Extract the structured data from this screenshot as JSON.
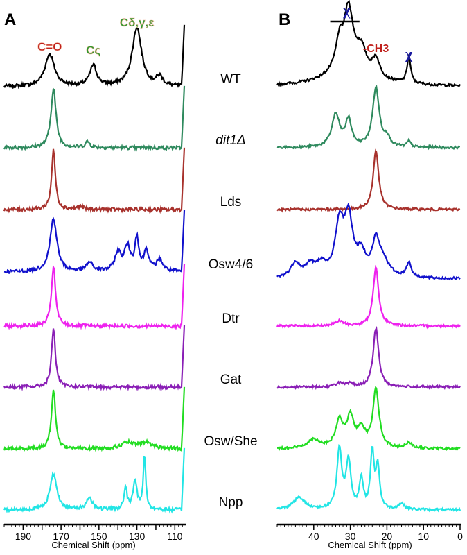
{
  "chart_data": [
    {
      "panel": "A",
      "type": "line",
      "xlabel": "Chemical Shift (ppm)",
      "xlim": [
        200,
        105
      ],
      "xticks": [
        190,
        180,
        170,
        160,
        150,
        140,
        130,
        120,
        110
      ],
      "tick_labels": [
        "190",
        "170",
        "150",
        "130",
        "110"
      ],
      "annotations": [
        {
          "text": "C=O",
          "x": 176,
          "color": "#c0201c"
        },
        {
          "text": "Cς",
          "x": 153,
          "color": "#2e9a2e"
        },
        {
          "text": "Cδ,γ,ε",
          "x": 130,
          "color": "#2e9a2e"
        }
      ]
    },
    {
      "panel": "B",
      "type": "line",
      "xlabel": "Chemical Shift (ppm)",
      "xlim": [
        50,
        0
      ],
      "xticks": [
        40,
        30,
        20,
        10,
        0
      ],
      "tick_labels": [
        "40",
        "30",
        "20",
        "10",
        "0"
      ],
      "annotations": [
        {
          "text": "χ",
          "x": 31,
          "color": "#1a1aa0"
        },
        {
          "text": "-CH3",
          "x": 23,
          "color": "#c0201c"
        },
        {
          "text": "χ",
          "x": 14,
          "color": "#1a1aa0"
        }
      ]
    }
  ],
  "series": [
    {
      "name": "WT",
      "italic": false,
      "color": "#000000",
      "peaksA": [
        [
          176,
          0.55,
          3
        ],
        [
          153,
          0.35,
          2.2
        ],
        [
          130,
          1.0,
          3
        ],
        [
          118,
          0.15,
          2
        ]
      ],
      "peaksB": [
        [
          33,
          0.45,
          1.2
        ],
        [
          30.5,
          1.0,
          1.5
        ],
        [
          27,
          0.35,
          1.5
        ],
        [
          23,
          0.3,
          1.2
        ],
        [
          14,
          0.45,
          0.6
        ],
        [
          30,
          0.3,
          7
        ]
      ]
    },
    {
      "name": "dit1Δ",
      "italic": true,
      "color": "#2f8a5e",
      "peaksA": [
        [
          174,
          1.0,
          1.6
        ],
        [
          156,
          0.1,
          1.5
        ]
      ],
      "peaksB": [
        [
          34,
          0.55,
          1.3
        ],
        [
          30.5,
          0.45,
          1.0
        ],
        [
          23,
          1.0,
          1.1
        ],
        [
          20,
          0.15,
          1
        ],
        [
          14,
          0.1,
          0.6
        ]
      ]
    },
    {
      "name": "Lds",
      "italic": false,
      "color": "#a8322d",
      "peaksA": [
        [
          174,
          1.0,
          1.2
        ],
        [
          160,
          0.05,
          2
        ]
      ],
      "peaksB": [
        [
          23,
          1.0,
          0.9
        ]
      ]
    },
    {
      "name": "Osw4/6",
      "italic": false,
      "color": "#1111cc",
      "peaksA": [
        [
          174,
          0.9,
          2.2
        ],
        [
          155,
          0.15,
          2
        ],
        [
          140,
          0.3,
          2
        ],
        [
          135,
          0.4,
          2
        ],
        [
          130,
          0.55,
          1.2
        ],
        [
          125,
          0.35,
          1.5
        ],
        [
          118,
          0.2,
          2
        ]
      ],
      "peaksB": [
        [
          45,
          0.25,
          1.5
        ],
        [
          41,
          0.2,
          1.5
        ],
        [
          38,
          0.2,
          1.5
        ],
        [
          33,
          0.85,
          1.4
        ],
        [
          30.5,
          0.95,
          1.4
        ],
        [
          27,
          0.35,
          1.5
        ],
        [
          23,
          0.55,
          1.2
        ],
        [
          21,
          0.25,
          2
        ],
        [
          14,
          0.25,
          0.8
        ]
      ]
    },
    {
      "name": "Dtr",
      "italic": false,
      "color": "#ee22ee",
      "peaksA": [
        [
          174,
          1.0,
          1.3
        ]
      ],
      "peaksB": [
        [
          33,
          0.08,
          1.5
        ],
        [
          23,
          1.0,
          0.9
        ]
      ]
    },
    {
      "name": "Gat",
      "italic": false,
      "color": "#8a1fb6",
      "peaksA": [
        [
          174,
          1.0,
          1.2
        ]
      ],
      "peaksB": [
        [
          33,
          0.07,
          1.2
        ],
        [
          30,
          0.05,
          1
        ],
        [
          23,
          1.0,
          0.9
        ]
      ]
    },
    {
      "name": "Osw/She",
      "italic": false,
      "color": "#22dd22",
      "peaksA": [
        [
          174,
          1.0,
          1.3
        ],
        [
          135,
          0.1,
          4
        ],
        [
          125,
          0.1,
          4
        ]
      ],
      "peaksB": [
        [
          40,
          0.15,
          2
        ],
        [
          33,
          0.45,
          1.2
        ],
        [
          30,
          0.5,
          1.2
        ],
        [
          27,
          0.3,
          1.2
        ],
        [
          23,
          1.0,
          1.0
        ],
        [
          14,
          0.1,
          1
        ]
      ]
    },
    {
      "name": "Npp",
      "italic": false,
      "color": "#22e5e5",
      "peaksA": [
        [
          174,
          0.6,
          2.2
        ],
        [
          155,
          0.2,
          2
        ],
        [
          136,
          0.35,
          1
        ],
        [
          131,
          0.5,
          1.2
        ],
        [
          126,
          0.9,
          0.8
        ]
      ],
      "peaksB": [
        [
          44,
          0.2,
          2
        ],
        [
          33,
          1.0,
          0.8
        ],
        [
          30.5,
          0.8,
          0.8
        ],
        [
          27,
          0.5,
          0.6
        ],
        [
          24,
          0.95,
          0.6
        ],
        [
          22.5,
          0.7,
          0.6
        ],
        [
          16,
          0.1,
          1
        ]
      ]
    }
  ],
  "panel_labels": [
    "A",
    "B"
  ]
}
